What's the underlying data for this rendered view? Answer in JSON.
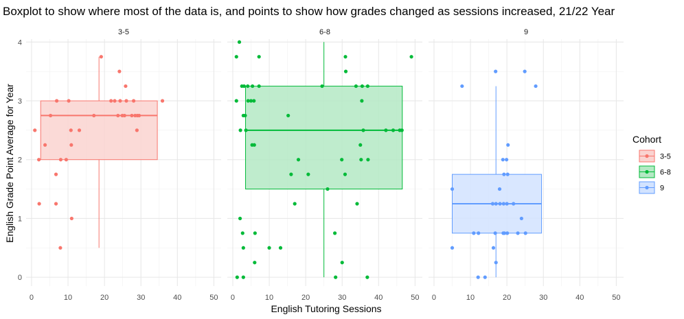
{
  "chart_data": {
    "type": "boxplot-scatter",
    "title": "Boxplot to show where most of the data is, and points to show how grades changed as sessions increased, 21/22 Year",
    "xlabel": "English Tutoring Sessions",
    "ylabel": "English Grade Point Average for Year",
    "xlim": [
      -1.5,
      52
    ],
    "ylim": [
      -0.15,
      4.05
    ],
    "xticks": [
      0,
      10,
      20,
      30,
      40,
      50
    ],
    "yticks": [
      0,
      1,
      2,
      3,
      4
    ],
    "grid": true,
    "legend": {
      "title": "Cohort",
      "position": "right",
      "entries": [
        "3-5",
        "6-8",
        "9"
      ]
    },
    "panels": [
      {
        "name": "3-5",
        "color": "#F8766D",
        "fill": "#FAD3D0",
        "box": {
          "x_min": 2.5,
          "x_max": 34.5,
          "x_center": 18.5,
          "lower_whisker": 0.5,
          "q1": 2.0,
          "median": 2.75,
          "q3": 3.0,
          "upper_whisker": 3.75
        },
        "points": [
          [
            0.9,
            2.5
          ],
          [
            2.0,
            2.0
          ],
          [
            2.1,
            1.25
          ],
          [
            3.7,
            2.25
          ],
          [
            5.2,
            2.75
          ],
          [
            6.7,
            1.75
          ],
          [
            6.9,
            3.0
          ],
          [
            6.7,
            1.25
          ],
          [
            7.9,
            0.5
          ],
          [
            8.0,
            2.0
          ],
          [
            9.5,
            2.0
          ],
          [
            10.2,
            3.0
          ],
          [
            10.8,
            2.5
          ],
          [
            10.9,
            2.25
          ],
          [
            11.0,
            1.0
          ],
          [
            13.1,
            2.5
          ],
          [
            17.1,
            2.75
          ],
          [
            19.1,
            3.75
          ],
          [
            21.8,
            3.0
          ],
          [
            22.8,
            3.0
          ],
          [
            23.7,
            2.75
          ],
          [
            24.1,
            3.5
          ],
          [
            24.3,
            3.0
          ],
          [
            24.9,
            2.75
          ],
          [
            25.5,
            2.75
          ],
          [
            25.8,
            3.25
          ],
          [
            26.0,
            3.0
          ],
          [
            27.5,
            2.75
          ],
          [
            28.0,
            3.0
          ],
          [
            28.4,
            2.75
          ],
          [
            28.9,
            2.5
          ],
          [
            29.0,
            2.75
          ],
          [
            29.5,
            2.75
          ],
          [
            35.9,
            3.0
          ]
        ]
      },
      {
        "name": "6-8",
        "color": "#00BA38",
        "fill": "#B4E9C4",
        "box": {
          "x_min": 3.5,
          "x_max": 46.5,
          "x_center": 25.0,
          "lower_whisker": 0.0,
          "q1": 1.5,
          "median": 2.5,
          "q3": 3.25,
          "upper_whisker": 4.0
        },
        "points": [
          [
            1.0,
            3.75
          ],
          [
            1.0,
            3.0
          ],
          [
            1.2,
            0.0
          ],
          [
            1.8,
            4.0
          ],
          [
            2.0,
            1.0
          ],
          [
            2.1,
            2.5
          ],
          [
            2.5,
            3.25
          ],
          [
            2.7,
            0.75
          ],
          [
            2.9,
            0.0
          ],
          [
            2.9,
            0.5
          ],
          [
            2.9,
            2.75
          ],
          [
            3.1,
            3.25
          ],
          [
            3.4,
            2.75
          ],
          [
            3.6,
            2.5
          ],
          [
            4.1,
            3.25
          ],
          [
            4.2,
            3.0
          ],
          [
            5.0,
            3.0
          ],
          [
            5.3,
            2.25
          ],
          [
            5.4,
            3.25
          ],
          [
            5.8,
            3.0
          ],
          [
            5.9,
            2.25
          ],
          [
            6.0,
            0.25
          ],
          [
            6.1,
            0.75
          ],
          [
            7.2,
            3.75
          ],
          [
            7.2,
            3.25
          ],
          [
            10.0,
            0.5
          ],
          [
            13.1,
            0.5
          ],
          [
            15.2,
            2.75
          ],
          [
            16.0,
            1.75
          ],
          [
            17.0,
            1.25
          ],
          [
            18.0,
            2.0
          ],
          [
            20.7,
            1.75
          ],
          [
            24.5,
            3.25
          ],
          [
            26.0,
            1.5
          ],
          [
            28.0,
            0.75
          ],
          [
            28.2,
            0.0
          ],
          [
            29.9,
            2.0
          ],
          [
            30.0,
            0.25
          ],
          [
            30.8,
            1.75
          ],
          [
            30.9,
            3.75
          ],
          [
            31.0,
            3.5
          ],
          [
            33.8,
            3.25
          ],
          [
            34.1,
            1.25
          ],
          [
            35.0,
            2.25
          ],
          [
            35.2,
            2.0
          ],
          [
            35.4,
            3.0
          ],
          [
            35.5,
            3.25
          ],
          [
            35.8,
            2.5
          ],
          [
            36.9,
            0.0
          ],
          [
            37.0,
            3.25
          ],
          [
            37.1,
            2.0
          ],
          [
            42.0,
            2.5
          ],
          [
            44.0,
            2.5
          ],
          [
            45.8,
            2.5
          ],
          [
            46.4,
            2.5
          ],
          [
            49.0,
            3.75
          ]
        ]
      },
      {
        "name": "9",
        "color": "#619CFF",
        "fill": "#D2E3FF",
        "box": {
          "x_min": 5.0,
          "x_max": 29.5,
          "x_center": 17.0,
          "lower_whisker": 0.0,
          "q1": 0.75,
          "median": 1.25,
          "q3": 1.75,
          "upper_whisker": 3.25
        },
        "points": [
          [
            5.0,
            1.5
          ],
          [
            5.0,
            0.5
          ],
          [
            7.7,
            3.25
          ],
          [
            10.9,
            0.75
          ],
          [
            12.1,
            0.0
          ],
          [
            12.2,
            0.75
          ],
          [
            14.0,
            0.0
          ],
          [
            16.1,
            1.25
          ],
          [
            16.3,
            0.5
          ],
          [
            16.8,
            0.75
          ],
          [
            16.9,
            3.5
          ],
          [
            17.0,
            0.25
          ],
          [
            17.0,
            1.25
          ],
          [
            18.0,
            1.5
          ],
          [
            18.1,
            1.25
          ],
          [
            18.9,
            2.0
          ],
          [
            19.0,
            0.75
          ],
          [
            19.1,
            1.25
          ],
          [
            19.2,
            1.75
          ],
          [
            19.3,
            0.75
          ],
          [
            19.9,
            2.0
          ],
          [
            20.0,
            1.25
          ],
          [
            20.1,
            0.75
          ],
          [
            20.2,
            1.75
          ],
          [
            20.3,
            2.25
          ],
          [
            21.8,
            1.25
          ],
          [
            23.0,
            0.75
          ],
          [
            24.0,
            1.0
          ],
          [
            24.9,
            3.5
          ],
          [
            25.1,
            0.75
          ],
          [
            27.9,
            3.25
          ]
        ]
      }
    ]
  }
}
